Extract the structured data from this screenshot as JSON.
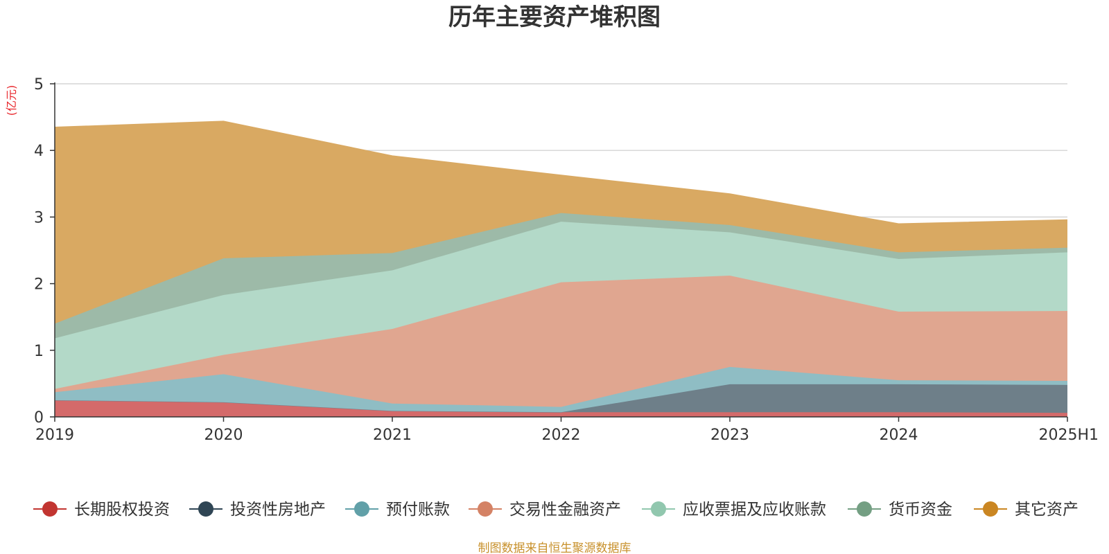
{
  "colors": {
    "title": "#333333",
    "unit": "#e8262b",
    "source": "#c8912c",
    "grid": "#cccccc",
    "axis": "#333333"
  },
  "chart_data": {
    "type": "area",
    "stacked": true,
    "title": "历年主要资产堆积图",
    "unit_label": "(亿元)",
    "source_note": "制图数据来自恒生聚源数据库",
    "categories": [
      "2019",
      "2020",
      "2021",
      "2022",
      "2023",
      "2024",
      "2025H1"
    ],
    "ylim": [
      0,
      5
    ],
    "yticks": [
      "0",
      "1",
      "2",
      "3",
      "4",
      "5"
    ],
    "grid": true,
    "legend_position": "bottom",
    "series": [
      {
        "name": "长期股权投资",
        "color": "#c23531",
        "fill": "#d46a6a",
        "values": [
          0.25,
          0.22,
          0.09,
          0.07,
          0.07,
          0.07,
          0.06
        ]
      },
      {
        "name": "投资性房地产",
        "color": "#2f4554",
        "fill": "#6e7f89",
        "values": [
          0.0,
          0.0,
          0.0,
          0.0,
          0.42,
          0.42,
          0.42
        ]
      },
      {
        "name": "预付账款",
        "color": "#61a0a8",
        "fill": "#8fbdc4",
        "values": [
          0.12,
          0.42,
          0.11,
          0.08,
          0.26,
          0.06,
          0.06
        ]
      },
      {
        "name": "交易性金融资产",
        "color": "#d48265",
        "fill": "#e0a690",
        "values": [
          0.05,
          0.29,
          1.12,
          1.87,
          1.37,
          1.03,
          1.05
        ]
      },
      {
        "name": "应收票据及应收账款",
        "color": "#91c7ae",
        "fill": "#b3d9c8",
        "values": [
          0.76,
          0.9,
          0.88,
          0.91,
          0.65,
          0.79,
          0.88
        ]
      },
      {
        "name": "货币资金",
        "color": "#749f83",
        "fill": "#9dbaa8",
        "values": [
          0.22,
          0.55,
          0.26,
          0.13,
          0.11,
          0.1,
          0.07
        ]
      },
      {
        "name": "其它资产",
        "color": "#ca8622",
        "fill": "#d9a962",
        "values": [
          2.95,
          2.06,
          1.46,
          0.57,
          0.47,
          0.43,
          0.42
        ]
      }
    ]
  }
}
